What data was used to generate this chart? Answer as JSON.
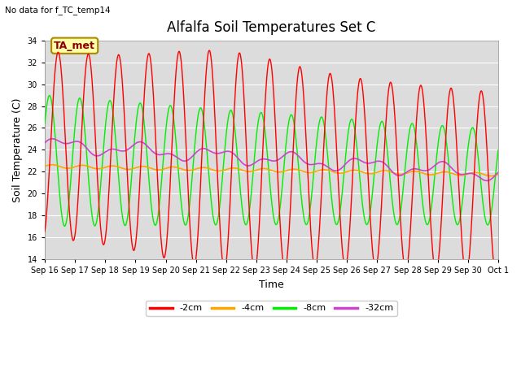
{
  "title": "Alfalfa Soil Temperatures Set C",
  "xlabel": "Time",
  "ylabel": "Soil Temperature (C)",
  "ylim": [
    14,
    34
  ],
  "xlim": [
    0,
    15
  ],
  "no_data_text": "No data for f_TC_temp14",
  "ta_met_label": "TA_met",
  "legend_labels": [
    "-2cm",
    "-4cm",
    "-8cm",
    "-32cm"
  ],
  "legend_colors": [
    "#ff0000",
    "#ffa500",
    "#00ee00",
    "#cc44cc"
  ],
  "bg_color": "#dcdcdc",
  "x_tick_labels": [
    "Sep 16",
    "Sep 17",
    "Sep 18",
    "Sep 19",
    "Sep 20",
    "Sep 21",
    "Sep 22",
    "Sep 23",
    "Sep 24",
    "Sep 25",
    "Sep 26",
    "Sep 27",
    "Sep 28",
    "Sep 29",
    "Sep 30",
    "Oct 1"
  ],
  "yticks": [
    14,
    16,
    18,
    20,
    22,
    24,
    26,
    28,
    30,
    32,
    34
  ],
  "title_fontsize": 12,
  "axis_label_fontsize": 9,
  "tick_fontsize": 7,
  "legend_fontsize": 8
}
